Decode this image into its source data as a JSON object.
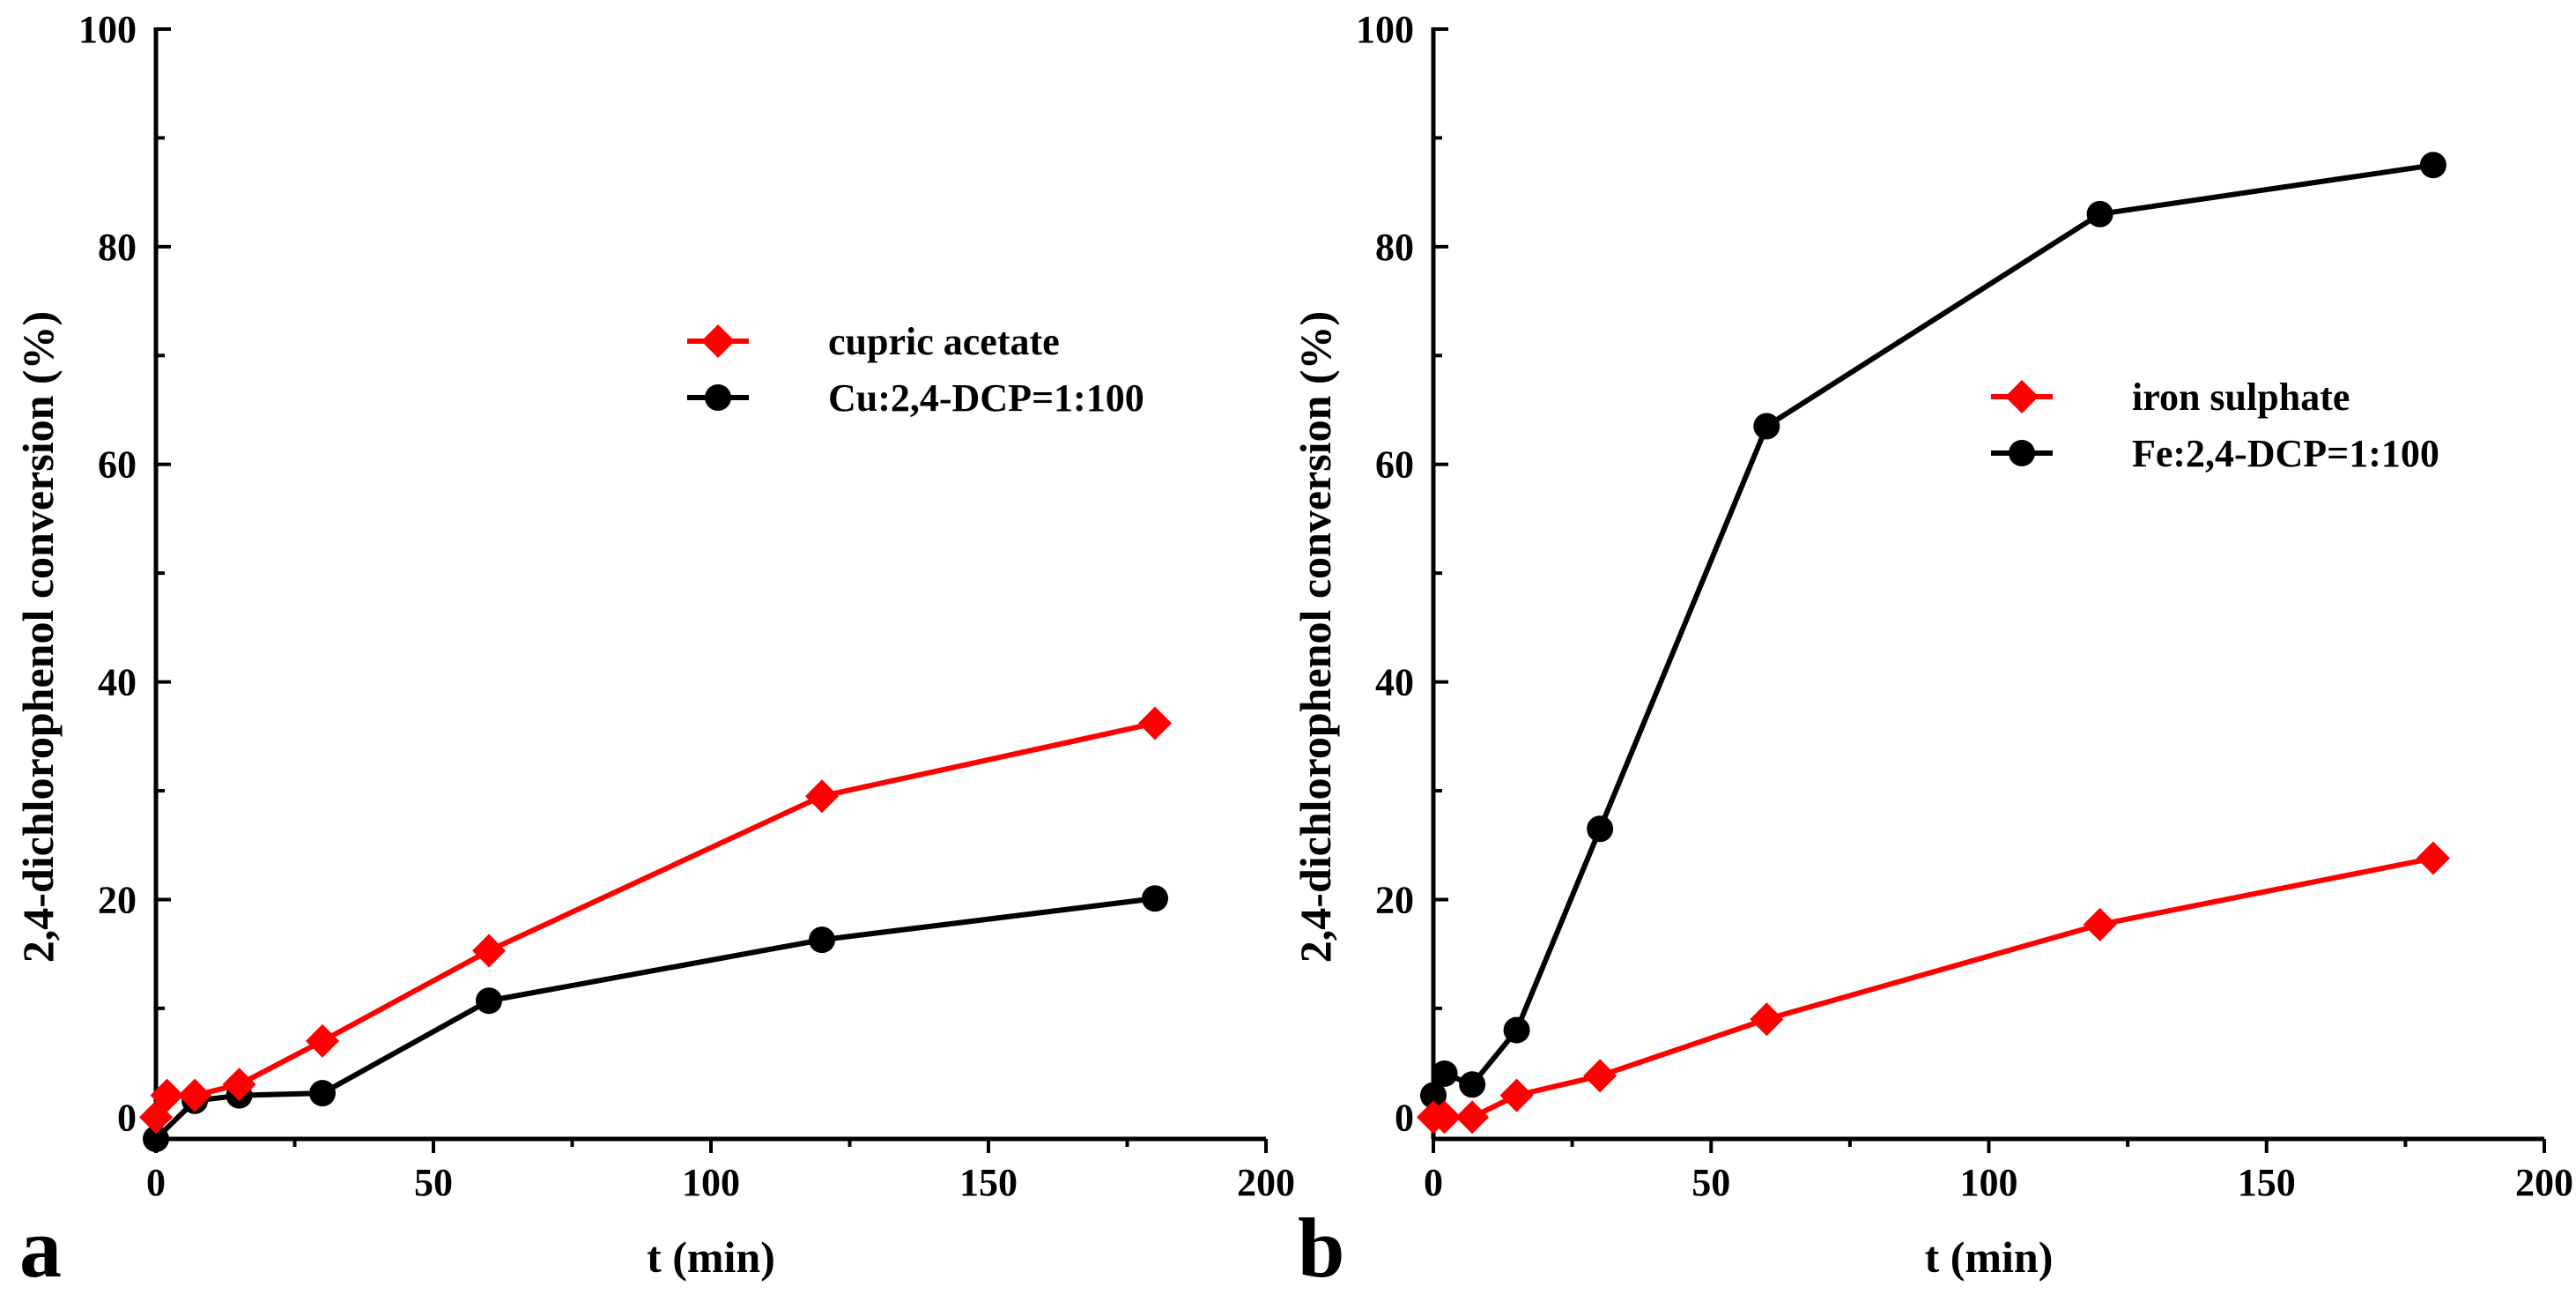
{
  "chart_data": [
    {
      "panel_label": "a",
      "type": "line",
      "title": "",
      "xlabel": "t (min)",
      "ylabel": "2,4-dichlorophenol conversion (%)",
      "xlim": [
        0,
        200
      ],
      "ylim": [
        -2,
        100
      ],
      "x_ticks": [
        "0",
        "50",
        "100",
        "150",
        "200"
      ],
      "y_ticks": [
        "0",
        "20",
        "40",
        "60",
        "80",
        "100"
      ],
      "grid": false,
      "legend_position": "upper-right",
      "series": [
        {
          "name": "cupric acetate",
          "color": "#ff0000",
          "marker": "diamond",
          "x": [
            0,
            2,
            7,
            15,
            30,
            60,
            120,
            180
          ],
          "y": [
            0,
            2,
            2,
            3,
            7,
            15.3,
            29.5,
            36.2
          ]
        },
        {
          "name": "Cu:2,4-DCP=1:100",
          "color": "#000000",
          "marker": "circle",
          "x": [
            0,
            7,
            15,
            30,
            60,
            120,
            180
          ],
          "y": [
            -2,
            1.5,
            2,
            2.2,
            10.7,
            16.3,
            20.1
          ]
        }
      ]
    },
    {
      "panel_label": "b",
      "type": "line",
      "title": "",
      "xlabel": "t (min)",
      "ylabel": "2,4-dichlorophenol conversion (%)",
      "xlim": [
        0,
        200
      ],
      "ylim": [
        -2,
        100
      ],
      "x_ticks": [
        "0",
        "50",
        "100",
        "150",
        "200"
      ],
      "y_ticks": [
        "0",
        "20",
        "40",
        "60",
        "80",
        "100"
      ],
      "grid": false,
      "legend_position": "upper-right",
      "series": [
        {
          "name": "iron sulphate",
          "color": "#ff0000",
          "marker": "diamond",
          "x": [
            0,
            2,
            7,
            15,
            30,
            60,
            120,
            180
          ],
          "y": [
            0,
            0,
            0,
            2,
            3.8,
            9,
            17.7,
            23.8
          ]
        },
        {
          "name": "Fe:2,4-DCP=1:100",
          "color": "#000000",
          "marker": "circle",
          "x": [
            0,
            2,
            7,
            15,
            30,
            60,
            120,
            180
          ],
          "y": [
            2,
            4,
            3,
            8,
            26.5,
            63.5,
            83,
            87.5
          ]
        }
      ]
    }
  ]
}
